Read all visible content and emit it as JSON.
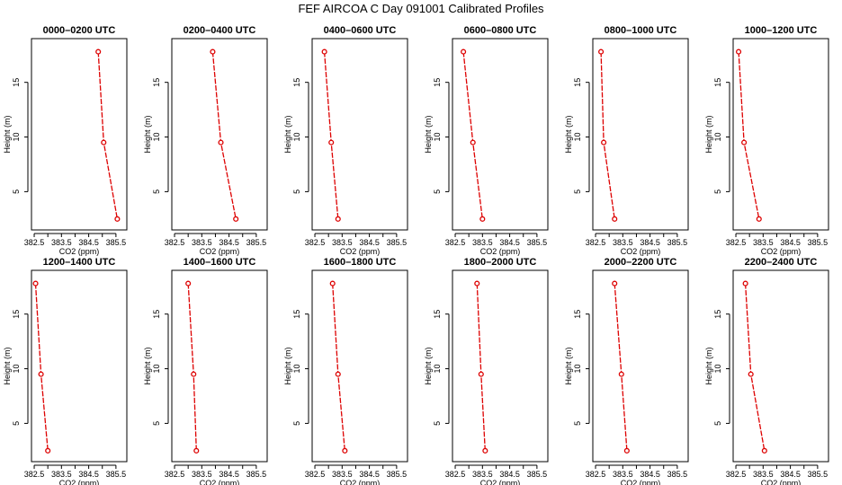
{
  "title": "FEF AIRCOA C  Day 091001  Calibrated Profiles",
  "colors": {
    "series": "#dd0000",
    "axis": "#000000"
  },
  "chart_data": [
    {
      "type": "line",
      "title": "0000–0200 UTC",
      "xlabel": "CO2 (ppm)",
      "ylabel": "Height (m)",
      "x": [
        384.85,
        385.05,
        385.55
      ],
      "y": [
        17.8,
        9.5,
        2.5
      ]
    },
    {
      "type": "line",
      "title": "0200–0400 UTC",
      "xlabel": "CO2 (ppm)",
      "ylabel": "Height (m)",
      "x": [
        383.9,
        384.2,
        384.75
      ],
      "y": [
        17.8,
        9.5,
        2.5
      ]
    },
    {
      "type": "line",
      "title": "0400–0600 UTC",
      "xlabel": "CO2 (ppm)",
      "ylabel": "Height (m)",
      "x": [
        382.85,
        383.1,
        383.35
      ],
      "y": [
        17.8,
        9.5,
        2.5
      ]
    },
    {
      "type": "line",
      "title": "0600–0800 UTC",
      "xlabel": "CO2 (ppm)",
      "ylabel": "Height (m)",
      "x": [
        382.8,
        383.15,
        383.5
      ],
      "y": [
        17.8,
        9.5,
        2.5
      ]
    },
    {
      "type": "line",
      "title": "0800–1000 UTC",
      "xlabel": "CO2 (ppm)",
      "ylabel": "Height (m)",
      "x": [
        382.7,
        382.8,
        383.2
      ],
      "y": [
        17.8,
        9.5,
        2.5
      ]
    },
    {
      "type": "line",
      "title": "1000–1200 UTC",
      "xlabel": "CO2 (ppm)",
      "ylabel": "Height (m)",
      "x": [
        382.6,
        382.8,
        383.35
      ],
      "y": [
        17.8,
        9.5,
        2.5
      ]
    },
    {
      "type": "line",
      "title": "1200–1400 UTC",
      "xlabel": "CO2 (ppm)",
      "ylabel": "Height (m)",
      "x": [
        382.55,
        382.75,
        383.0
      ],
      "y": [
        17.8,
        9.5,
        2.5
      ]
    },
    {
      "type": "line",
      "title": "1400–1600 UTC",
      "xlabel": "CO2 (ppm)",
      "ylabel": "Height (m)",
      "x": [
        383.0,
        383.2,
        383.3
      ],
      "y": [
        17.8,
        9.5,
        2.5
      ]
    },
    {
      "type": "line",
      "title": "1600–1800 UTC",
      "xlabel": "CO2 (ppm)",
      "ylabel": "Height (m)",
      "x": [
        383.15,
        383.35,
        383.6
      ],
      "y": [
        17.8,
        9.5,
        2.5
      ]
    },
    {
      "type": "line",
      "title": "1800–2000 UTC",
      "xlabel": "CO2 (ppm)",
      "ylabel": "Height (m)",
      "x": [
        383.3,
        383.45,
        383.6
      ],
      "y": [
        17.8,
        9.5,
        2.5
      ]
    },
    {
      "type": "line",
      "title": "2000–2200 UTC",
      "xlabel": "CO2 (ppm)",
      "ylabel": "Height (m)",
      "x": [
        383.2,
        383.45,
        383.65
      ],
      "y": [
        17.8,
        9.5,
        2.5
      ]
    },
    {
      "type": "line",
      "title": "2200–2400 UTC",
      "xlabel": "CO2 (ppm)",
      "ylabel": "Height (m)",
      "x": [
        382.85,
        383.05,
        383.55
      ],
      "y": [
        17.8,
        9.5,
        2.5
      ]
    }
  ],
  "axes": {
    "xlim": [
      382.4,
      385.9
    ],
    "ylim": [
      1.5,
      19.0
    ],
    "xticks": [
      "382.5",
      "383.5",
      "384.5",
      "385.5"
    ],
    "xticks_minor": [
      383.0,
      384.0,
      385.0
    ],
    "yticks": [
      "5",
      "10",
      "15"
    ],
    "grid": false,
    "legend": "none"
  }
}
